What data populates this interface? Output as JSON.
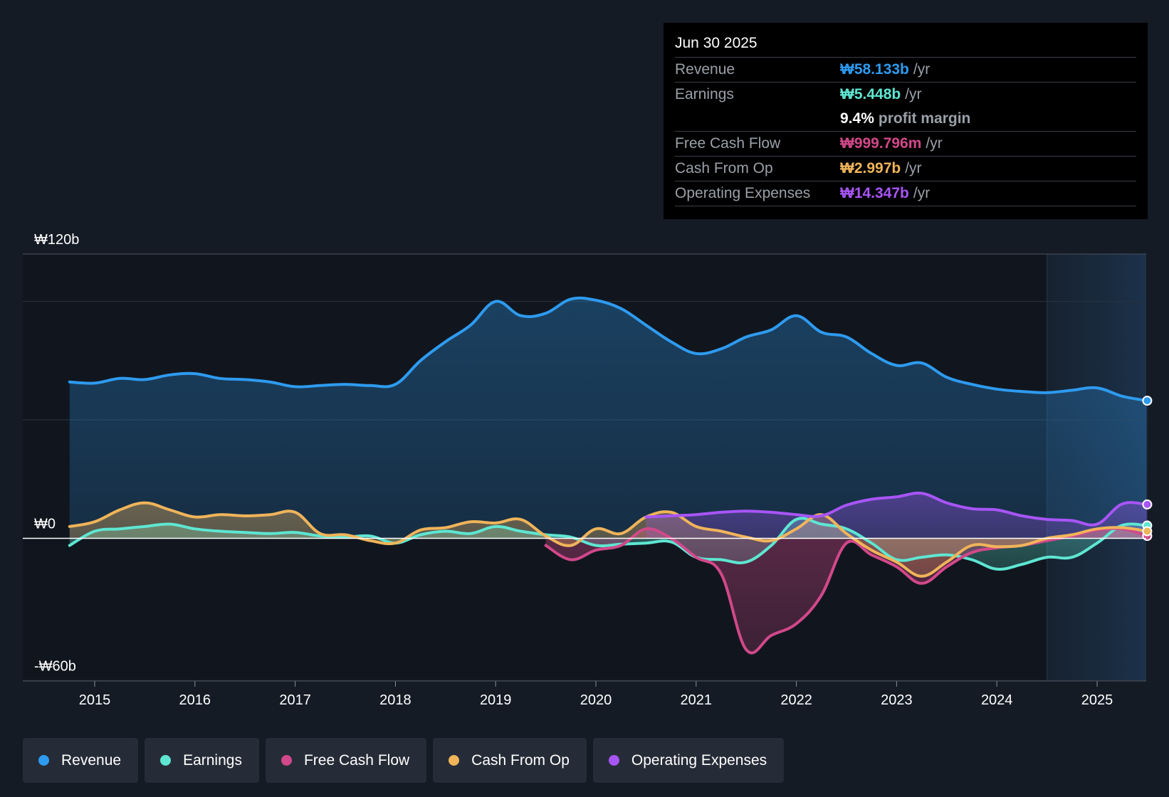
{
  "tooltip": {
    "date": "Jun 30 2025",
    "revenue": {
      "label": "Revenue",
      "value": "₩58.133b",
      "unit": "/yr",
      "color": "#2e9bf0"
    },
    "earnings": {
      "label": "Earnings",
      "value": "₩5.448b",
      "unit": "/yr",
      "color": "#5ee6d2"
    },
    "margin": {
      "value": "9.4%",
      "label": "profit margin"
    },
    "fcf": {
      "label": "Free Cash Flow",
      "value": "₩999.796m",
      "unit": "/yr",
      "color": "#d2488a"
    },
    "cfo": {
      "label": "Cash From Op",
      "value": "₩2.997b",
      "unit": "/yr",
      "color": "#f0b45a"
    },
    "opex": {
      "label": "Operating Expenses",
      "value": "₩14.347b",
      "unit": "/yr",
      "color": "#a855f7"
    }
  },
  "legend": [
    {
      "label": "Revenue",
      "color": "#2e9bf0"
    },
    {
      "label": "Earnings",
      "color": "#5ee6d2"
    },
    {
      "label": "Free Cash Flow",
      "color": "#d2488a"
    },
    {
      "label": "Cash From Op",
      "color": "#f0b45a"
    },
    {
      "label": "Operating Expenses",
      "color": "#a855f7"
    }
  ],
  "chart_data": {
    "type": "line",
    "title": "",
    "xlabel": "",
    "ylabel": "",
    "xlim": [
      2014.45,
      2025.6
    ],
    "ylim": [
      -60,
      120
    ],
    "y_tick_labels": [
      {
        "value": 120,
        "label": "₩120b"
      },
      {
        "value": 0,
        "label": "₩0"
      },
      {
        "value": -60,
        "label": "-₩60b"
      }
    ],
    "gridlines": [
      100,
      50
    ],
    "x_ticks": [
      2015,
      2016,
      2017,
      2018,
      2019,
      2020,
      2021,
      2022,
      2023,
      2024,
      2025
    ],
    "forecast_start": 2024.5,
    "series": [
      {
        "name": "Revenue",
        "color": "#2e9bf0",
        "fill": true,
        "points": [
          [
            2014.75,
            66
          ],
          [
            2015.0,
            65.5
          ],
          [
            2015.25,
            67.5
          ],
          [
            2015.5,
            67
          ],
          [
            2015.75,
            69
          ],
          [
            2016.0,
            69.5
          ],
          [
            2016.25,
            67.5
          ],
          [
            2016.5,
            67
          ],
          [
            2016.75,
            66
          ],
          [
            2017.0,
            64
          ],
          [
            2017.25,
            64.5
          ],
          [
            2017.5,
            65
          ],
          [
            2017.75,
            64.5
          ],
          [
            2018.0,
            65
          ],
          [
            2018.25,
            75
          ],
          [
            2018.5,
            83
          ],
          [
            2018.75,
            90
          ],
          [
            2019.0,
            100
          ],
          [
            2019.25,
            94
          ],
          [
            2019.5,
            95
          ],
          [
            2019.75,
            101
          ],
          [
            2020.0,
            100.5
          ],
          [
            2020.25,
            97
          ],
          [
            2020.5,
            90
          ],
          [
            2020.75,
            83
          ],
          [
            2021.0,
            78
          ],
          [
            2021.25,
            80
          ],
          [
            2021.5,
            85
          ],
          [
            2021.75,
            88
          ],
          [
            2022.0,
            94
          ],
          [
            2022.25,
            87
          ],
          [
            2022.5,
            85
          ],
          [
            2022.75,
            78
          ],
          [
            2023.0,
            73
          ],
          [
            2023.25,
            74
          ],
          [
            2023.5,
            68
          ],
          [
            2023.75,
            65
          ],
          [
            2024.0,
            63
          ],
          [
            2024.25,
            62
          ],
          [
            2024.5,
            61.5
          ],
          [
            2024.75,
            62.5
          ],
          [
            2025.0,
            63.5
          ],
          [
            2025.25,
            60
          ],
          [
            2025.5,
            58.1
          ]
        ]
      },
      {
        "name": "Earnings",
        "color": "#5ee6d2",
        "fill": true,
        "points": [
          [
            2014.75,
            -3
          ],
          [
            2015.0,
            3
          ],
          [
            2015.25,
            4
          ],
          [
            2015.5,
            5
          ],
          [
            2015.75,
            6
          ],
          [
            2016.0,
            4
          ],
          [
            2016.25,
            3
          ],
          [
            2016.5,
            2.5
          ],
          [
            2016.75,
            2
          ],
          [
            2017.0,
            2.5
          ],
          [
            2017.25,
            1
          ],
          [
            2017.5,
            0.5
          ],
          [
            2017.75,
            1
          ],
          [
            2018.0,
            -2
          ],
          [
            2018.25,
            1.5
          ],
          [
            2018.5,
            3
          ],
          [
            2018.75,
            2
          ],
          [
            2019.0,
            5
          ],
          [
            2019.25,
            3
          ],
          [
            2019.5,
            1.5
          ],
          [
            2019.75,
            0.5
          ],
          [
            2020.0,
            -3
          ],
          [
            2020.25,
            -2.5
          ],
          [
            2020.5,
            -2
          ],
          [
            2020.75,
            -1.5
          ],
          [
            2021.0,
            -8
          ],
          [
            2021.25,
            -9
          ],
          [
            2021.5,
            -10
          ],
          [
            2021.75,
            -3
          ],
          [
            2022.0,
            8
          ],
          [
            2022.25,
            6
          ],
          [
            2022.5,
            4
          ],
          [
            2022.75,
            -2
          ],
          [
            2023.0,
            -9
          ],
          [
            2023.25,
            -8
          ],
          [
            2023.5,
            -7
          ],
          [
            2023.75,
            -9
          ],
          [
            2024.0,
            -13
          ],
          [
            2024.25,
            -11
          ],
          [
            2024.5,
            -8
          ],
          [
            2024.75,
            -8
          ],
          [
            2025.0,
            -2
          ],
          [
            2025.25,
            5.5
          ],
          [
            2025.5,
            5.4
          ]
        ]
      },
      {
        "name": "Free Cash Flow",
        "color": "#d2488a",
        "fill": true,
        "points": [
          [
            2019.5,
            -3
          ],
          [
            2019.75,
            -9
          ],
          [
            2020.0,
            -5
          ],
          [
            2020.25,
            -3
          ],
          [
            2020.5,
            4
          ],
          [
            2020.75,
            0
          ],
          [
            2021.0,
            -8
          ],
          [
            2021.25,
            -15
          ],
          [
            2021.5,
            -47
          ],
          [
            2021.75,
            -41
          ],
          [
            2022.0,
            -36
          ],
          [
            2022.25,
            -24
          ],
          [
            2022.5,
            -2
          ],
          [
            2022.75,
            -7
          ],
          [
            2023.0,
            -12
          ],
          [
            2023.25,
            -19
          ],
          [
            2023.5,
            -12
          ],
          [
            2023.75,
            -6
          ],
          [
            2024.0,
            -4
          ],
          [
            2024.25,
            -3
          ],
          [
            2024.5,
            -1
          ],
          [
            2024.75,
            1
          ],
          [
            2025.0,
            3.5
          ],
          [
            2025.25,
            4
          ],
          [
            2025.5,
            1
          ]
        ]
      },
      {
        "name": "Cash From Op",
        "color": "#f0b45a",
        "fill": true,
        "points": [
          [
            2014.75,
            5
          ],
          [
            2015.0,
            7
          ],
          [
            2015.25,
            12
          ],
          [
            2015.5,
            15
          ],
          [
            2015.75,
            12
          ],
          [
            2016.0,
            9
          ],
          [
            2016.25,
            10
          ],
          [
            2016.5,
            9.5
          ],
          [
            2016.75,
            10
          ],
          [
            2017.0,
            11
          ],
          [
            2017.25,
            2
          ],
          [
            2017.5,
            1.5
          ],
          [
            2017.75,
            -1
          ],
          [
            2018.0,
            -2
          ],
          [
            2018.25,
            3.5
          ],
          [
            2018.5,
            4.5
          ],
          [
            2018.75,
            7
          ],
          [
            2019.0,
            6.5
          ],
          [
            2019.25,
            8
          ],
          [
            2019.5,
            1
          ],
          [
            2019.75,
            -3
          ],
          [
            2020.0,
            4
          ],
          [
            2020.25,
            2
          ],
          [
            2020.5,
            9
          ],
          [
            2020.75,
            11
          ],
          [
            2021.0,
            5
          ],
          [
            2021.25,
            3
          ],
          [
            2021.5,
            0.5
          ],
          [
            2021.75,
            -1
          ],
          [
            2022.0,
            4
          ],
          [
            2022.25,
            10
          ],
          [
            2022.5,
            2
          ],
          [
            2022.75,
            -5
          ],
          [
            2023.0,
            -10
          ],
          [
            2023.25,
            -16
          ],
          [
            2023.5,
            -10
          ],
          [
            2023.75,
            -3
          ],
          [
            2024.0,
            -3.5
          ],
          [
            2024.25,
            -3
          ],
          [
            2024.5,
            0
          ],
          [
            2024.75,
            1.5
          ],
          [
            2025.0,
            4
          ],
          [
            2025.25,
            4.5
          ],
          [
            2025.5,
            3
          ]
        ]
      },
      {
        "name": "Operating Expenses",
        "color": "#a855f7",
        "fill": true,
        "points": [
          [
            2020.5,
            9
          ],
          [
            2020.75,
            9.5
          ],
          [
            2021.0,
            10
          ],
          [
            2021.25,
            11
          ],
          [
            2021.5,
            11.5
          ],
          [
            2021.75,
            11
          ],
          [
            2022.0,
            10
          ],
          [
            2022.25,
            9.5
          ],
          [
            2022.5,
            14
          ],
          [
            2022.75,
            16.5
          ],
          [
            2023.0,
            17.5
          ],
          [
            2023.25,
            19
          ],
          [
            2023.5,
            15
          ],
          [
            2023.75,
            12.5
          ],
          [
            2024.0,
            12
          ],
          [
            2024.25,
            9.5
          ],
          [
            2024.5,
            8
          ],
          [
            2024.75,
            7.5
          ],
          [
            2025.0,
            6
          ],
          [
            2025.25,
            14.5
          ],
          [
            2025.5,
            14.3
          ]
        ]
      }
    ]
  }
}
